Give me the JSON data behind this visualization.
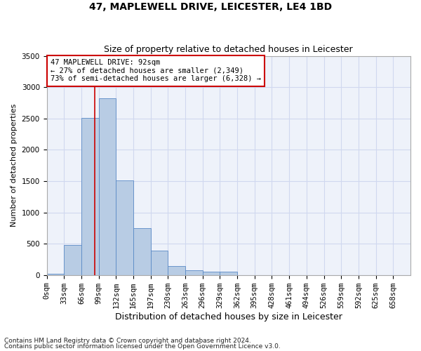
{
  "title": "47, MAPLEWELL DRIVE, LEICESTER, LE4 1BD",
  "subtitle": "Size of property relative to detached houses in Leicester",
  "xlabel": "Distribution of detached houses by size in Leicester",
  "ylabel": "Number of detached properties",
  "footnote1": "Contains HM Land Registry data © Crown copyright and database right 2024.",
  "footnote2": "Contains public sector information licensed under the Open Government Licence v3.0.",
  "annotation_line1": "47 MAPLEWELL DRIVE: 92sqm",
  "annotation_line2": "← 27% of detached houses are smaller (2,349)",
  "annotation_line3": "73% of semi-detached houses are larger (6,328) →",
  "bar_color": "#b8cce4",
  "bar_edge_color": "#5a8ac6",
  "grid_color": "#d0d8ef",
  "background_color": "#eef2fa",
  "red_line_color": "#cc0000",
  "annotation_box_edgecolor": "#cc0000",
  "bin_labels": [
    "0sqm",
    "33sqm",
    "66sqm",
    "99sqm",
    "132sqm",
    "165sqm",
    "197sqm",
    "230sqm",
    "263sqm",
    "296sqm",
    "329sqm",
    "362sqm",
    "395sqm",
    "428sqm",
    "461sqm",
    "494sqm",
    "526sqm",
    "559sqm",
    "592sqm",
    "625sqm",
    "658sqm"
  ],
  "bar_heights": [
    20,
    480,
    2510,
    2820,
    1510,
    750,
    385,
    140,
    70,
    50,
    50,
    0,
    0,
    0,
    0,
    0,
    0,
    0,
    0,
    0,
    0
  ],
  "ylim": [
    0,
    3500
  ],
  "yticks": [
    0,
    500,
    1000,
    1500,
    2000,
    2500,
    3000,
    3500
  ],
  "title_fontsize": 10,
  "subtitle_fontsize": 9,
  "xlabel_fontsize": 9,
  "ylabel_fontsize": 8,
  "tick_fontsize": 7.5,
  "annotation_fontsize": 7.5,
  "footnote_fontsize": 6.5
}
